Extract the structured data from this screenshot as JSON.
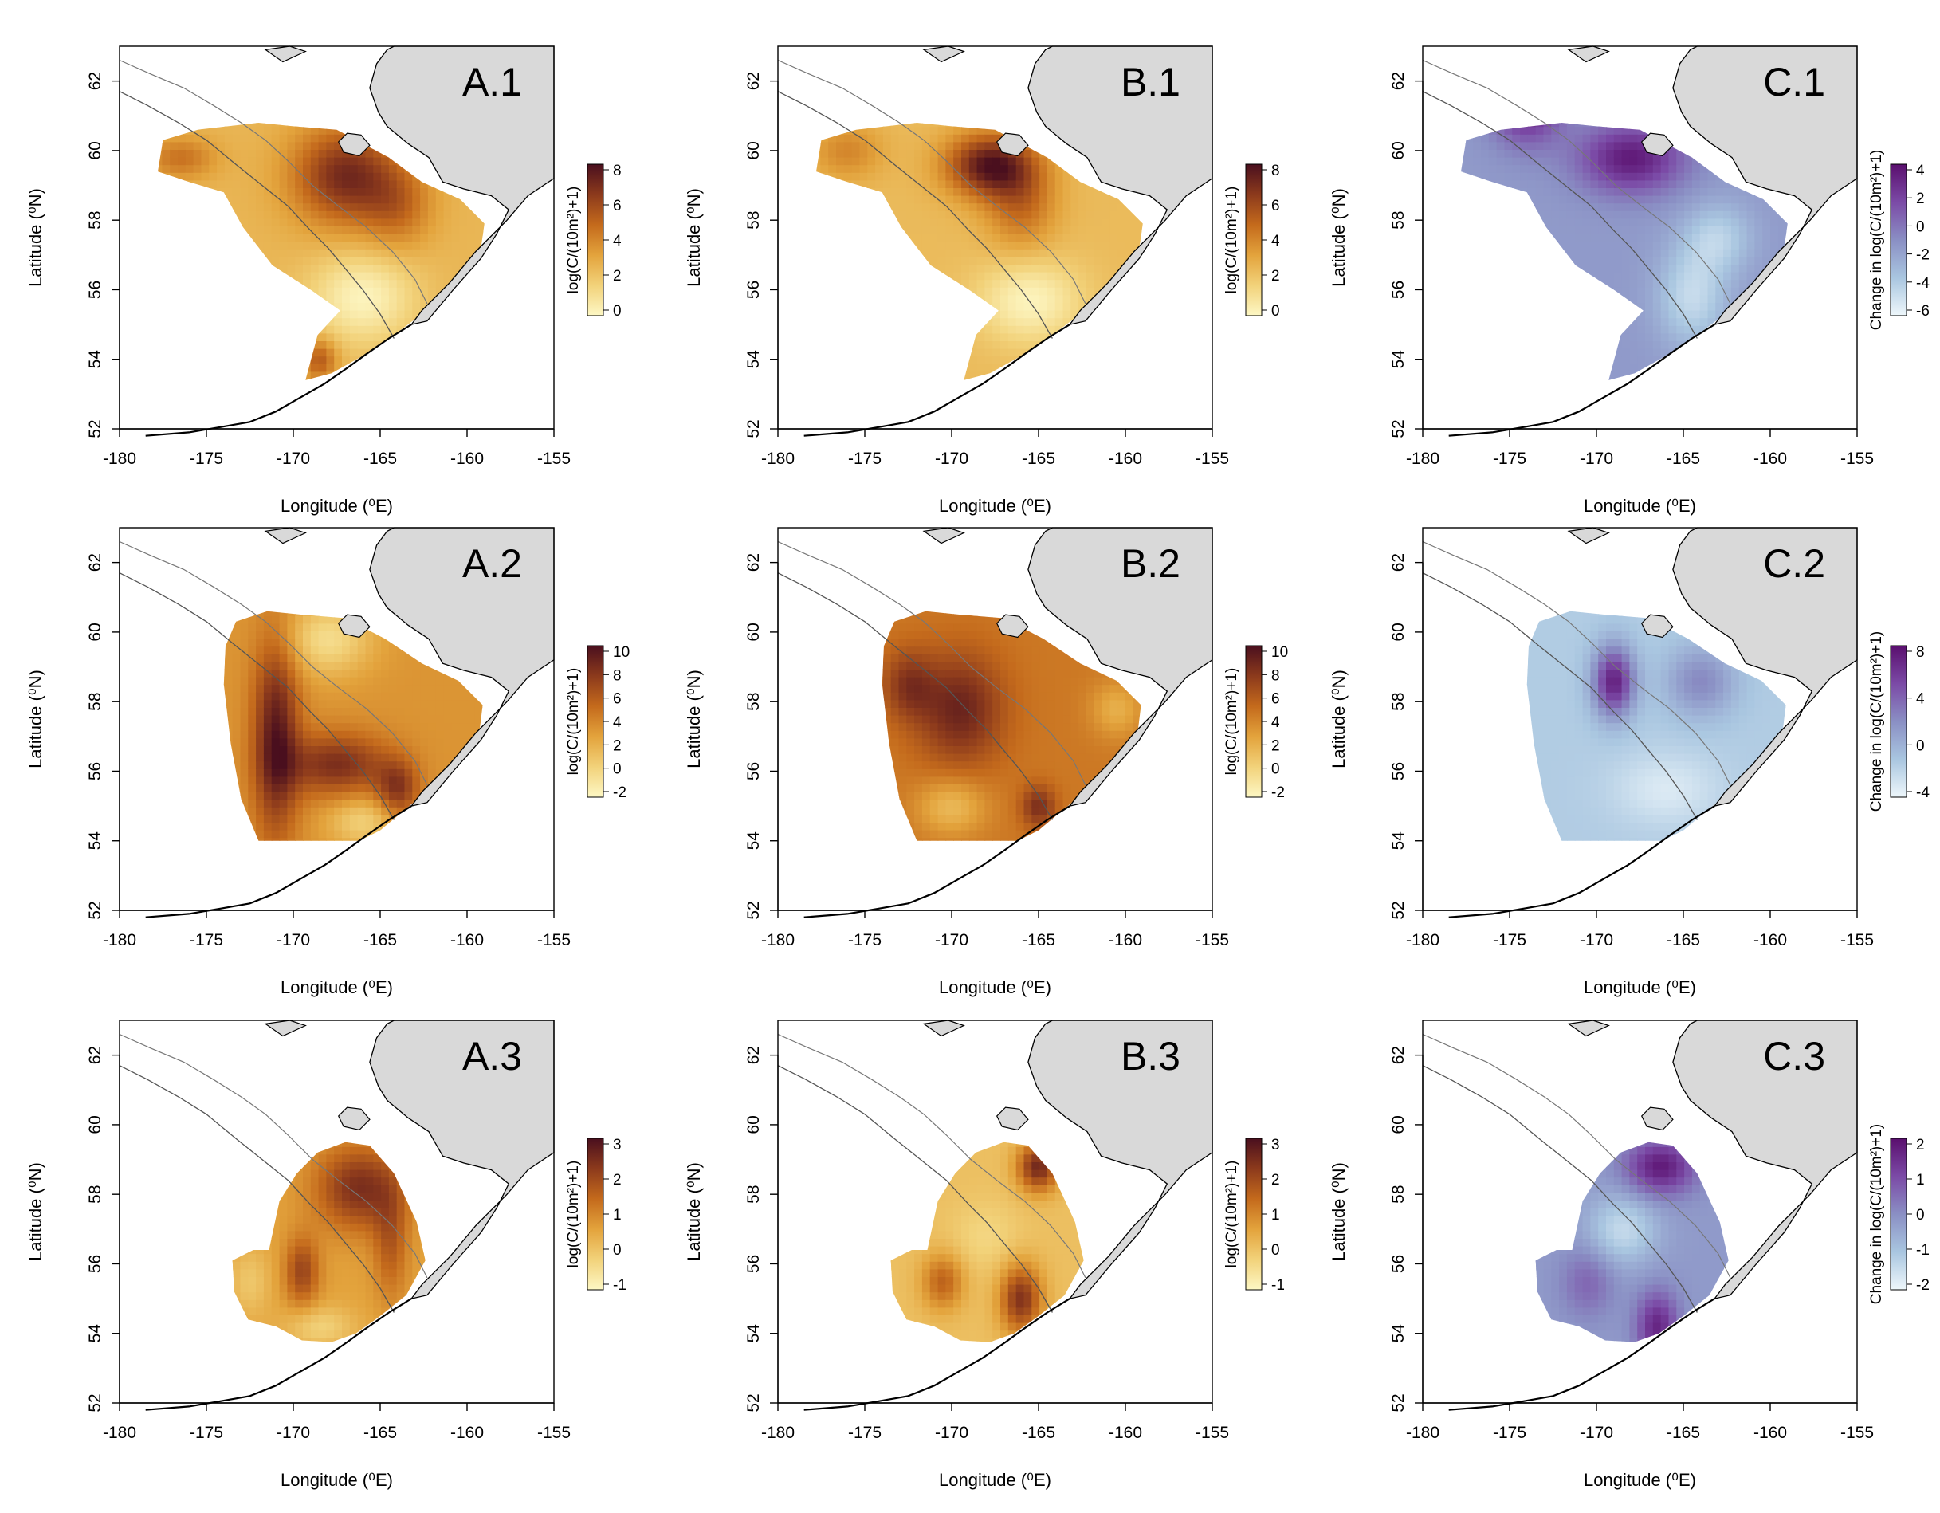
{
  "figure": {
    "x_axis_title": "Longitude (⁰E)",
    "y_axis_title": "Latitude (⁰N)",
    "x_ticks": [
      -180,
      -175,
      -170,
      -165,
      -160,
      -155
    ],
    "y_ticks": [
      52,
      54,
      56,
      58,
      60,
      62
    ],
    "x_range": [
      -180,
      -155
    ],
    "y_range": [
      52,
      63
    ],
    "legend_title_abundance": "log(C/(10m²)+1)",
    "legend_title_change": "Change in log(C/(10m²)+1)",
    "land_color": "#d9d9d9",
    "abundance_palette": [
      "#fdf7c4",
      "#f2d27a",
      "#e3a33c",
      "#c46a1c",
      "#8c3a1c",
      "#4a0f1e"
    ],
    "change_palette": [
      "#eef7fb",
      "#a9c6e0",
      "#8a8fc4",
      "#7b4aa6",
      "#5a0f6e"
    ]
  },
  "panels": [
    {
      "label": "A.1",
      "kind": "abundance",
      "legend_ticks": [
        0,
        2,
        4,
        6,
        8
      ]
    },
    {
      "label": "B.1",
      "kind": "abundance",
      "legend_ticks": [
        0,
        2,
        4,
        6,
        8
      ]
    },
    {
      "label": "C.1",
      "kind": "change",
      "legend_ticks": [
        -6,
        -4,
        -2,
        0,
        2,
        4
      ]
    },
    {
      "label": "A.2",
      "kind": "abundance",
      "legend_ticks": [
        -2,
        0,
        2,
        4,
        6,
        8,
        10
      ]
    },
    {
      "label": "B.2",
      "kind": "abundance",
      "legend_ticks": [
        -2,
        0,
        2,
        4,
        6,
        8,
        10
      ]
    },
    {
      "label": "C.2",
      "kind": "change",
      "legend_ticks": [
        -4,
        0,
        4,
        8
      ]
    },
    {
      "label": "A.3",
      "kind": "abundance",
      "legend_ticks": [
        -1,
        0,
        1,
        2,
        3
      ]
    },
    {
      "label": "B.3",
      "kind": "abundance",
      "legend_ticks": [
        -1,
        0,
        1,
        2,
        3
      ]
    },
    {
      "label": "C.3",
      "kind": "change",
      "legend_ticks": [
        -2,
        -1,
        0,
        1,
        2
      ]
    }
  ]
}
